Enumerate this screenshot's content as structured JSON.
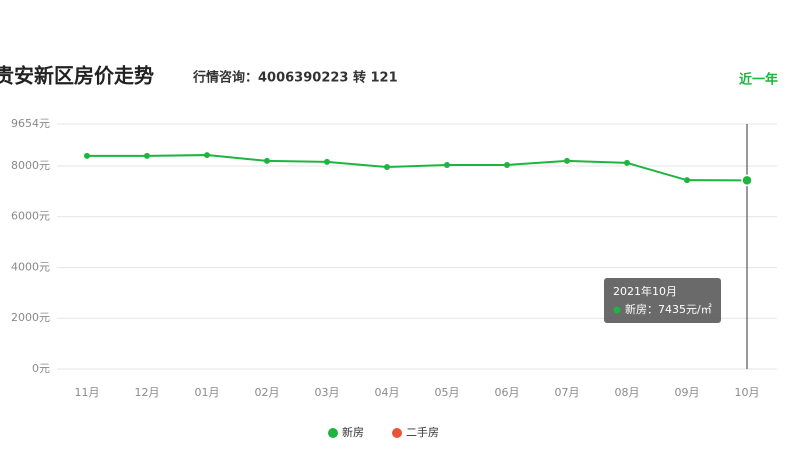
{
  "chart_data": {
    "type": "line",
    "title": "贵安新区房价走势",
    "subtitle": "行情咨询：4006390223 转 121",
    "range_label": "近一年",
    "categories": [
      "11月",
      "12月",
      "01月",
      "02月",
      "03月",
      "04月",
      "05月",
      "06月",
      "07月",
      "08月",
      "09月",
      "10月"
    ],
    "series": [
      {
        "name": "新房",
        "color": "#1db53f",
        "values": [
          8400,
          8400,
          8430,
          8200,
          8160,
          7960,
          8040,
          8040,
          8200,
          8120,
          7440,
          7435
        ]
      },
      {
        "name": "二手房",
        "color": "#e8533a",
        "values": [
          null,
          null,
          null,
          null,
          null,
          null,
          null,
          null,
          null,
          null,
          null,
          null
        ]
      }
    ],
    "ylim": [
      0,
      9654
    ],
    "yticks": [
      {
        "value": 0,
        "label": "0元"
      },
      {
        "value": 2000,
        "label": "2000元"
      },
      {
        "value": 4000,
        "label": "4000元"
      },
      {
        "value": 6000,
        "label": "6000元"
      },
      {
        "value": 8000,
        "label": "8000元"
      },
      {
        "value": 9654,
        "label": "9654元"
      }
    ],
    "grid": true,
    "tooltip": {
      "title": "2021年10月",
      "label": "新房：7435元/㎡"
    }
  }
}
